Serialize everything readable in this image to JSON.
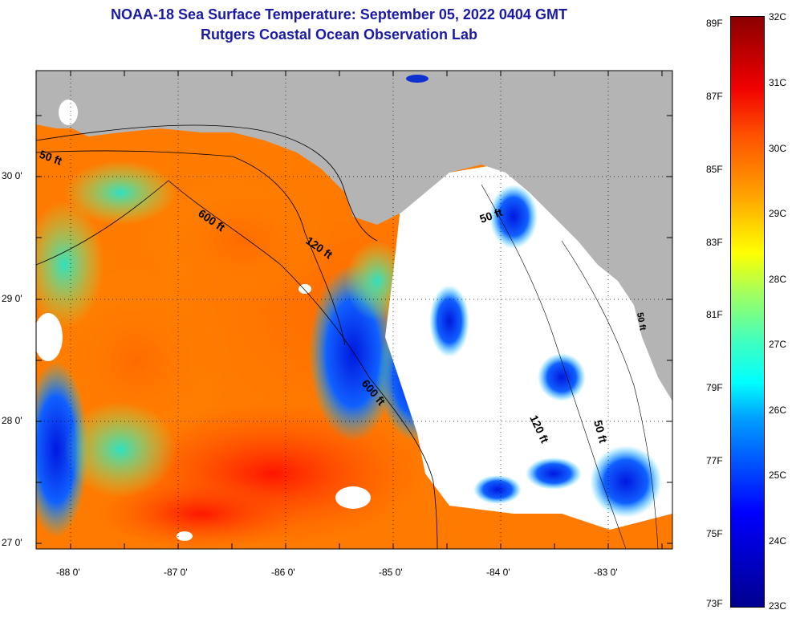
{
  "title": "NOAA-18 Sea Surface Temperature:  September 05, 2022 0404 GMT",
  "subtitle": "Rutgers Coastal Ocean Observation Lab",
  "map": {
    "lat_labels": [
      "30 0'",
      "29 0'",
      "28 0'",
      "27 0'"
    ],
    "lon_labels": [
      "-88 0'",
      "-87 0'",
      "-86 0'",
      "-85 0'",
      "-84 0'",
      "-83 0'"
    ],
    "contours": [
      "50 ft",
      "600 ft",
      "120 ft",
      "600 ft",
      "50 ft",
      "120 ft",
      "50 ft",
      "50 ft"
    ],
    "colors": {
      "land": "#b4b4b4",
      "cloud": "#ffffff",
      "frame": "#000000"
    }
  },
  "colorbar": {
    "fahrenheit": [
      "89F",
      "87F",
      "85F",
      "83F",
      "81F",
      "79F",
      "77F",
      "75F",
      "73F"
    ],
    "celsius": [
      "32C",
      "31C",
      "30C",
      "29C",
      "28C",
      "27C",
      "26C",
      "25C",
      "24C",
      "23C"
    ]
  }
}
